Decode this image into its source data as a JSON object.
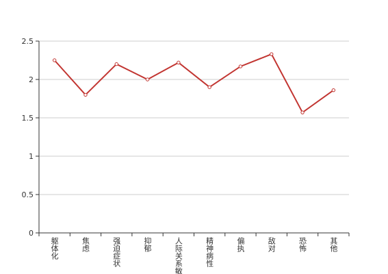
{
  "chart_data": {
    "type": "line",
    "categories": [
      "躯体化",
      "焦虑",
      "强迫症状",
      "抑郁",
      "人际关系敏感",
      "精神病性",
      "偏执",
      "敌对",
      "恐怖",
      "其他"
    ],
    "series": [
      {
        "color": "#c23531",
        "values": [
          2.25,
          1.8,
          2.2,
          2.0,
          2.22,
          1.9,
          2.17,
          2.33,
          1.57,
          1.86
        ]
      }
    ],
    "ylim": [
      0,
      2.5
    ],
    "yticks": [
      0,
      0.5,
      1,
      1.5,
      2,
      2.5
    ],
    "grid": true
  }
}
